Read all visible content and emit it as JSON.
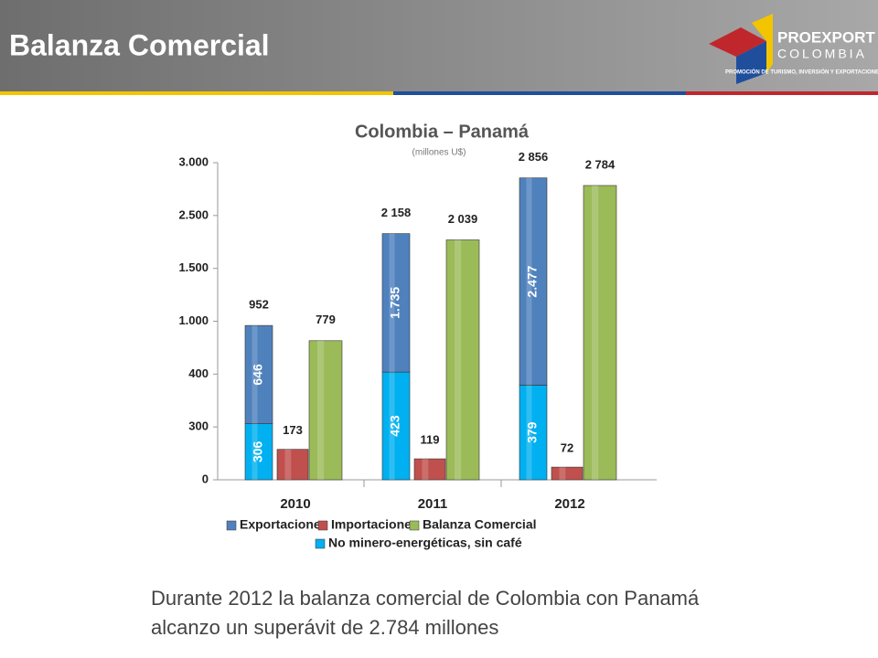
{
  "header": {
    "title": "Balanza Comercial",
    "logo_name": "PROEXPORT",
    "logo_country": "COLOMBIA",
    "logo_tagline": "PROMOCIÓN DE TURISMO, INVERSIÓN Y EXPORTACIONES"
  },
  "chart_data": {
    "type": "bar",
    "title": "Colombia – Panamá",
    "subtitle": "(millones U$)",
    "categories": [
      "2010",
      "2011",
      "2012"
    ],
    "yticks": [
      0,
      300,
      400,
      {
        "value": 1000,
        "label": "1.000"
      },
      {
        "value": 1500,
        "label": "1.500"
      },
      {
        "value": 2500,
        "label": "2.500"
      },
      {
        "value": 3000,
        "label": "3.000"
      }
    ],
    "ylim": [
      0,
      3000
    ],
    "series": [
      {
        "name": "Exportaciones",
        "color": "#4f81bd",
        "values": [
          646,
          1735,
          2477
        ],
        "value_labels": [
          "646",
          "1.735",
          "2.477"
        ],
        "stack": "exp"
      },
      {
        "name": "Importaciones",
        "color": "#c0504d",
        "values": [
          173,
          119,
          72
        ]
      },
      {
        "name": "Balanza Comercial",
        "color": "#9bbb59",
        "values": [
          779,
          2039,
          2784
        ],
        "value_labels": [
          "779",
          "2 039",
          "2 784"
        ]
      },
      {
        "name": "No minero-energéticas, sin café",
        "color": "#00b0f0",
        "values": [
          306,
          423,
          379
        ],
        "stack": "exp"
      }
    ],
    "stack_total_labels": [
      "952",
      "2 158",
      "2 856"
    ]
  },
  "body": {
    "lines": [
      "Durante 2012 la balanza comercial de Colombia con Panamá",
      "alcanzo un superávit de 2.784 millones"
    ]
  }
}
